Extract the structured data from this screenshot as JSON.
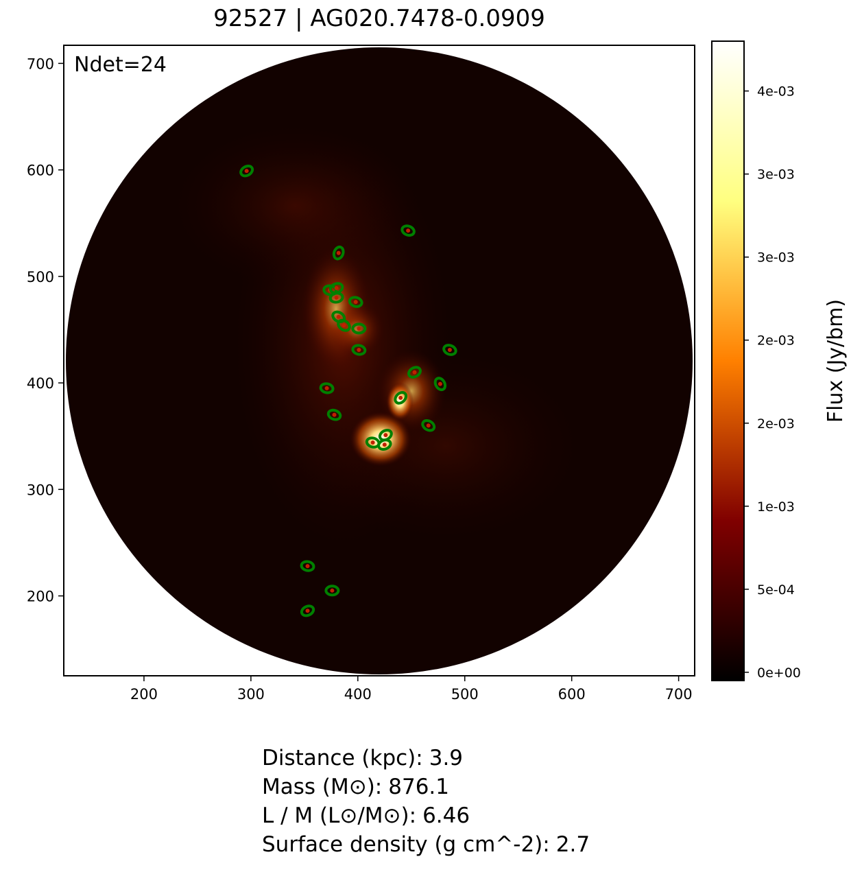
{
  "chart_data": {
    "type": "image",
    "title": "92527 | AG020.7478-0.0909",
    "annotation": "Ndet=24",
    "xlim": [
      125,
      715
    ],
    "ylim": [
      125,
      717
    ],
    "xticks": [
      200,
      300,
      400,
      500,
      600,
      700
    ],
    "yticks": [
      200,
      300,
      400,
      500,
      600,
      700
    ],
    "detections": {
      "color": "#008000",
      "x": [
        296,
        447,
        382,
        374,
        380,
        380,
        398,
        382,
        387,
        401,
        401,
        486,
        453,
        477,
        371,
        440,
        378,
        466,
        426,
        414,
        425,
        353,
        376,
        353
      ],
      "y": [
        599,
        543,
        522,
        487,
        489,
        480,
        476,
        462,
        454,
        451,
        431,
        431,
        410,
        399,
        395,
        386,
        370,
        360,
        351,
        344,
        342,
        228,
        205,
        186
      ]
    },
    "colorbar": {
      "label": "Flux (Jy/bm)",
      "colormap": "afmhot",
      "clim": [
        -5e-05,
        0.0038
      ],
      "ticks": [
        {
          "value": 0,
          "label": "0e+00"
        },
        {
          "value": 0.0005,
          "label": "5e-04"
        },
        {
          "value": 0.001,
          "label": "1e-03"
        },
        {
          "value": 0.0015,
          "label": "2e-03"
        },
        {
          "value": 0.002,
          "label": "2e-03"
        },
        {
          "value": 0.0025,
          "label": "3e-03"
        },
        {
          "value": 0.003,
          "label": "3e-03"
        },
        {
          "value": 0.0035,
          "label": "4e-03"
        }
      ]
    }
  },
  "stats": [
    {
      "label": "Distance (kpc):",
      "value": 3.9
    },
    {
      "label": "Mass (M⊙):",
      "value": 876.1
    },
    {
      "label": "L / M (L⊙/M⊙):",
      "value": 6.46
    },
    {
      "label": "Surface density (g cm^-2):",
      "value": 2.7
    }
  ]
}
